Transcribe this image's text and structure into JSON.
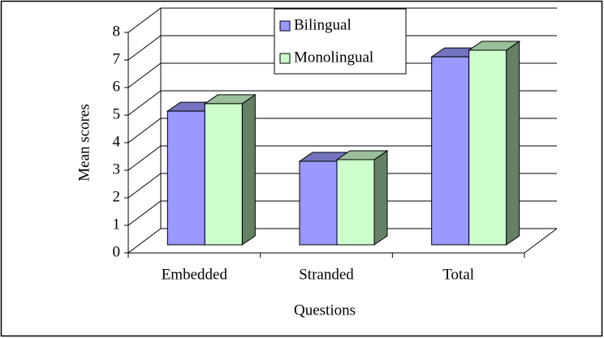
{
  "chart_data": {
    "type": "bar",
    "x_label": "Questions",
    "y_label": "Mean scores",
    "categories": [
      "Embedded",
      "Stranded",
      "Total"
    ],
    "series": [
      {
        "name": "Bilingual",
        "color": "#9999ff",
        "values": [
          4.85,
          3.03,
          6.82
        ]
      },
      {
        "name": "Monolingual",
        "color": "#ccffcc",
        "values": [
          5.12,
          3.09,
          7.06
        ]
      }
    ],
    "ylim": [
      0,
      8
    ],
    "yticks": [
      0,
      1,
      2,
      3,
      4,
      5,
      6,
      7,
      8
    ],
    "grid": true
  }
}
